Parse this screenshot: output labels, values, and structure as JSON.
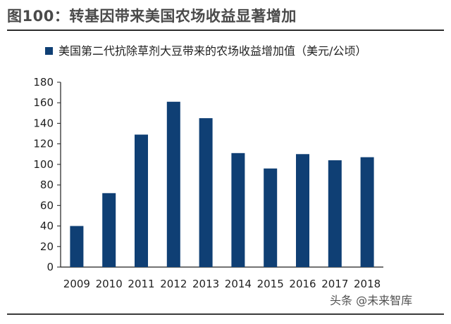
{
  "page": {
    "title": "图100：转基因带来美国农场收益显著增加",
    "watermark": "头条 @未来智库"
  },
  "colors": {
    "bar": "#0f3f74",
    "axis": "#1f1f1f",
    "text": "#1f1f1f",
    "title_text": "#4a4a4a"
  },
  "chart_data": {
    "type": "bar",
    "title": "",
    "xlabel": "",
    "ylabel": "",
    "categories": [
      "2009",
      "2010",
      "2011",
      "2012",
      "2013",
      "2014",
      "2015",
      "2016",
      "2017",
      "2018"
    ],
    "series": [
      {
        "name": "美国第二代抗除草剂大豆带来的农场收益增加值（美元/公顷）",
        "values": [
          40,
          72,
          129,
          161,
          145,
          111,
          96,
          110,
          104,
          107
        ]
      }
    ],
    "ylim": [
      0,
      180
    ],
    "yticks": [
      0,
      20,
      40,
      60,
      80,
      100,
      120,
      140,
      160,
      180
    ],
    "grid": false,
    "legend_position": "top-left"
  }
}
